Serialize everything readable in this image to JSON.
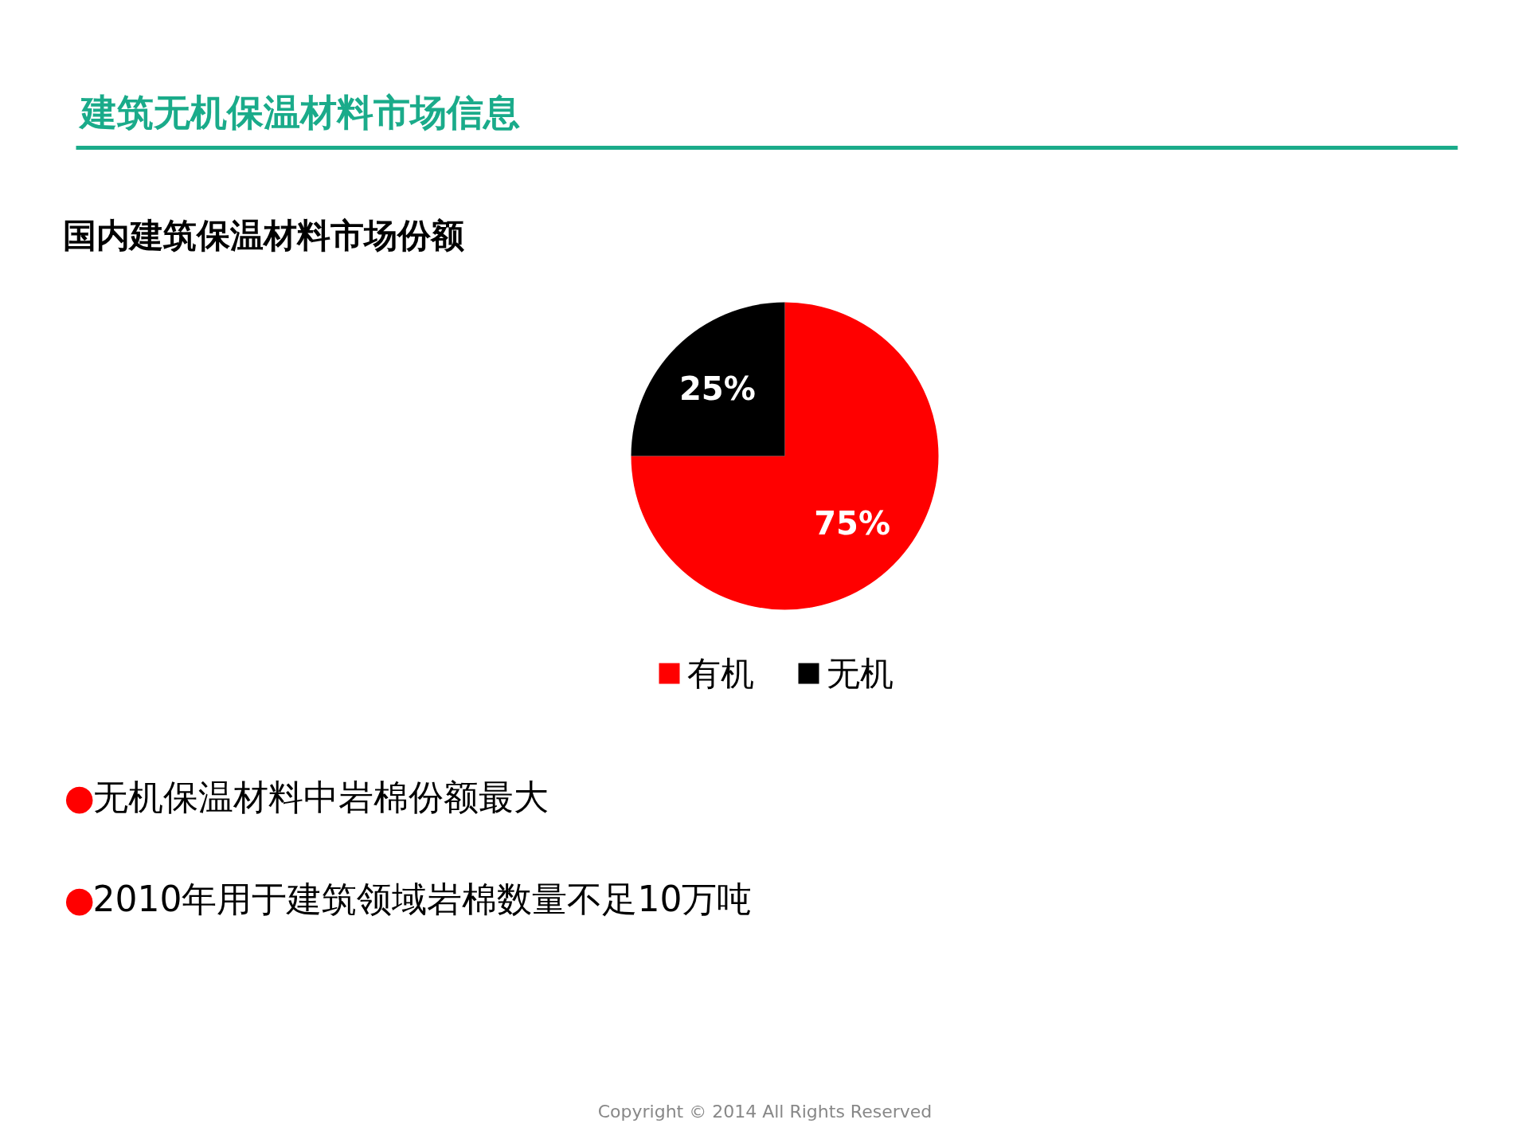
{
  "chart_data": {
    "type": "pie",
    "title": "建筑无机保温材料市场信息",
    "subtitle": "国内建筑保温材料市场份额",
    "categories": [
      "有机",
      "无机"
    ],
    "values": [
      75,
      25
    ],
    "colors": [
      "#ff0000",
      "#000000"
    ],
    "value_labels": [
      "75%",
      "25%"
    ],
    "legend": "bottom",
    "annotations": [
      "●无机保温材料中岩棉份额最大",
      "●2010年用于建筑领域岩棉数量不足10万吨",
      "Copyright © 2014 All Rights Reserved"
    ]
  }
}
